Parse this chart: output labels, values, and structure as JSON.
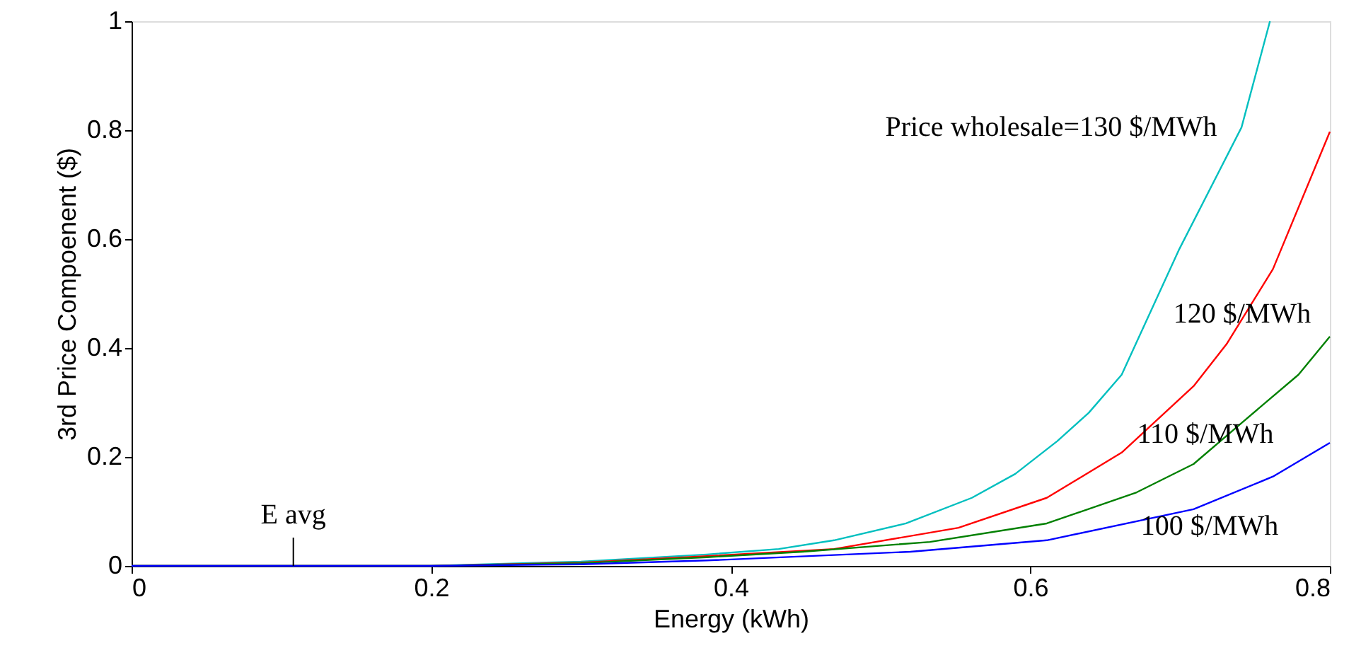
{
  "chart_data": {
    "type": "line",
    "xlabel": "Energy (kWh)",
    "ylabel": "3rd Price Compoenent ($)",
    "xlim": [
      0,
      0.8
    ],
    "ylim": [
      0,
      1
    ],
    "xticks": [
      0,
      0.2,
      0.4,
      0.6,
      0.8
    ],
    "yticks": [
      0,
      0.2,
      0.4,
      0.6,
      0.8,
      1
    ],
    "grid": false,
    "series": [
      {
        "color": "#00bfbf",
        "x": [
          0,
          0.2,
          0.3,
          0.384,
          0.432,
          0.469,
          0.517,
          0.561,
          0.59,
          0.618,
          0.639,
          0.661,
          0.699,
          0.741,
          0.76
        ],
        "values": [
          0,
          0,
          0.008,
          0.021,
          0.031,
          0.047,
          0.078,
          0.125,
          0.169,
          0.229,
          0.281,
          0.351,
          0.579,
          0.805,
          1.0
        ]
      },
      {
        "color": "#ff0000",
        "x": [
          0,
          0.2,
          0.3,
          0.384,
          0.469,
          0.552,
          0.611,
          0.661,
          0.709,
          0.731,
          0.762,
          0.8
        ],
        "values": [
          0,
          0,
          0.006,
          0.018,
          0.031,
          0.07,
          0.125,
          0.208,
          0.33,
          0.407,
          0.545,
          0.797
        ]
      },
      {
        "color": "#008000",
        "x": [
          0,
          0.2,
          0.3,
          0.384,
          0.448,
          0.533,
          0.611,
          0.671,
          0.709,
          0.74,
          0.779,
          0.8
        ],
        "values": [
          0,
          0,
          0.005,
          0.016,
          0.026,
          0.044,
          0.078,
          0.135,
          0.187,
          0.26,
          0.351,
          0.421
        ]
      },
      {
        "color": "#0000ff",
        "x": [
          0,
          0.2,
          0.3,
          0.384,
          0.52,
          0.611,
          0.709,
          0.762,
          0.8
        ],
        "values": [
          0,
          0,
          0.003,
          0.01,
          0.026,
          0.047,
          0.104,
          0.164,
          0.226
        ]
      }
    ],
    "annotations": [
      {
        "text": "E avg",
        "x": 0.108,
        "y": 0
      },
      "Price wholesale=130 $/MWh",
      "120 $/MWh",
      "110 $/MWh",
      "100 $/MWh"
    ]
  }
}
